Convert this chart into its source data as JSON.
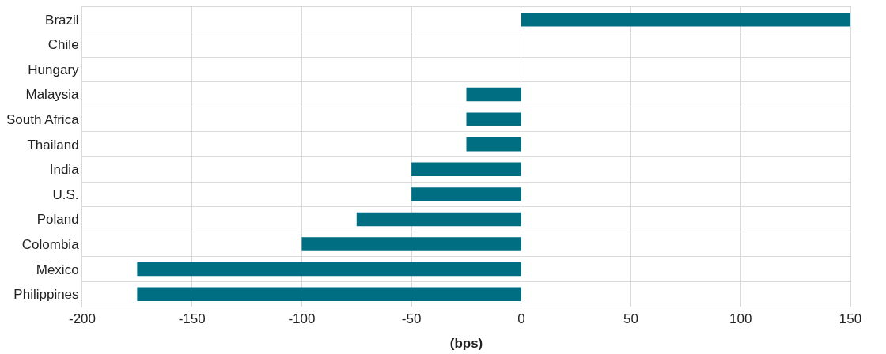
{
  "chart_data": {
    "type": "bar",
    "orientation": "horizontal",
    "xlabel": "(bps)",
    "categories": [
      "Brazil",
      "Chile",
      "Hungary",
      "Malaysia",
      "South Africa",
      "Thailand",
      "India",
      "U.S.",
      "Poland",
      "Colombia",
      "Mexico",
      "Philippines"
    ],
    "values": [
      150,
      0,
      0,
      -25,
      -25,
      -25,
      -50,
      -50,
      -75,
      -100,
      -175,
      -175
    ],
    "color": "#006e82",
    "xlim": [
      -200,
      150
    ],
    "xticks": [
      -200,
      -150,
      -100,
      -50,
      0,
      50,
      100,
      150
    ],
    "grid": true,
    "legend": false
  }
}
